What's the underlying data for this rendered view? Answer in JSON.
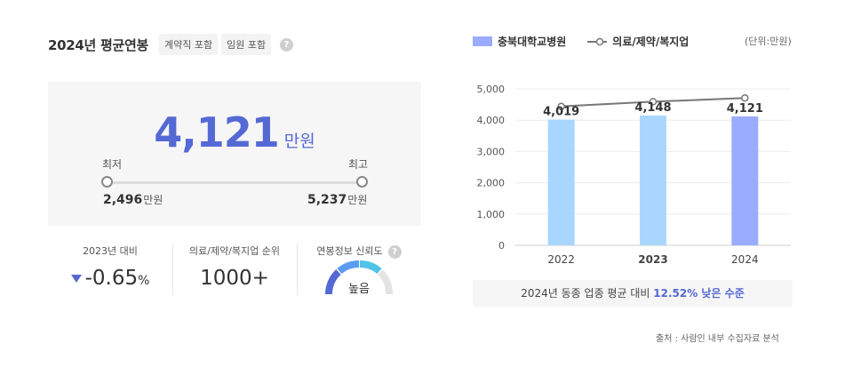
{
  "header": {
    "title": "2024년 평균연봉",
    "tags": [
      "계약직 포함",
      "임원 포함"
    ],
    "help": "?"
  },
  "salary": {
    "value": "4,121",
    "unit": "만원",
    "min_label": "최저",
    "max_label": "최고",
    "min_value": "2,496",
    "max_value": "5,237",
    "value_unit": "만원"
  },
  "stats": {
    "yoy_label": "2023년 대비",
    "yoy_value": "-0.65",
    "yoy_unit": "%",
    "rank_label": "의료/제약/복지업 순위",
    "rank_value": "1000+",
    "trust_label": "연봉정보 신뢰도",
    "trust_value": "높음"
  },
  "legend": {
    "bar": "충북대학교병원",
    "line": "의료/제약/복지업",
    "unit": "(단위:만원)"
  },
  "summary": {
    "prefix": "2024년 동종 업종 평균 대비",
    "highlight": "12.52% 낮은 수준"
  },
  "source": "출처 : 사람인 내부 수집자료 분석",
  "colors": {
    "accent": "#5469d4",
    "bar_light": "#a9d6ff",
    "bar_current": "#9aacff",
    "line": "#777777"
  },
  "chart_data": {
    "type": "bar",
    "categories": [
      "2022",
      "2023",
      "2024"
    ],
    "series": [
      {
        "name": "충북대학교병원",
        "type": "bar",
        "values": [
          4019,
          4148,
          4121
        ],
        "labels": [
          "4,019",
          "4,148",
          "4,121"
        ]
      },
      {
        "name": "의료/제약/복지업",
        "type": "line",
        "values": [
          4440,
          4590,
          4710
        ]
      }
    ],
    "ylim": [
      0,
      5000
    ],
    "yticks": [
      0,
      1000,
      2000,
      3000,
      4000,
      5000
    ],
    "ytick_labels": [
      "0",
      "1,000",
      "2,000",
      "3,000",
      "4,000",
      "5,000"
    ],
    "grid": true,
    "legend": "top-left"
  }
}
